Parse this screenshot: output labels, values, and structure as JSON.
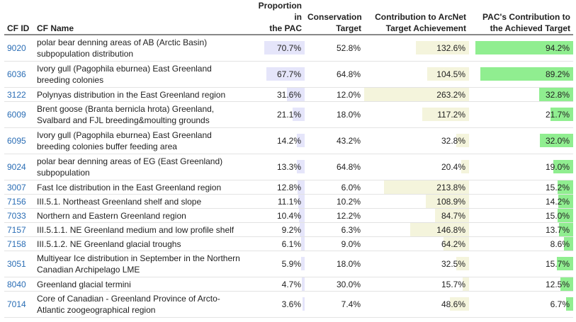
{
  "headers": {
    "cf_id": "CF ID",
    "cf_name": "CF Name",
    "proportion_l1": "Proportion in",
    "proportion_l2": "the PAC",
    "conservation_l1": "Conservation",
    "conservation_l2": "Target",
    "contribution_l1": "Contribution to ArcNet",
    "contribution_l2": "Target Achievement",
    "pac_l1": "PAC's Contribution to",
    "pac_l2": "the Achieved Target"
  },
  "rows": [
    {
      "id": "9020",
      "name": "polar bear denning areas of AB (Arctic Basin) subpopulation distribution",
      "proportion": "70.7%",
      "proportion_value": 70.7,
      "target": "52.8%",
      "contribution": "132.6%",
      "contribution_value": 132.6,
      "pac": "94.2%",
      "pac_value": 94.2
    },
    {
      "id": "6036",
      "name": "Ivory gull (Pagophila eburnea) East Greenland breeding colonies",
      "proportion": "67.7%",
      "proportion_value": 67.7,
      "target": "64.8%",
      "contribution": "104.5%",
      "contribution_value": 104.5,
      "pac": "89.2%",
      "pac_value": 89.2
    },
    {
      "id": "3122",
      "name": "Polynyas distribution in the East Greenland region",
      "proportion": "31.6%",
      "proportion_value": 31.6,
      "target": "12.0%",
      "contribution": "263.2%",
      "contribution_value": 263.2,
      "pac": "32.8%",
      "pac_value": 32.8
    },
    {
      "id": "6009",
      "name": "Brent goose (Branta bernicla hrota) Greenland, Svalbard and FJL breeding&moulting grounds",
      "proportion": "21.1%",
      "proportion_value": 21.1,
      "target": "18.0%",
      "contribution": "117.2%",
      "contribution_value": 117.2,
      "pac": "21.7%",
      "pac_value": 21.7
    },
    {
      "id": "6095",
      "name": "Ivory gull (Pagophila eburnea) East Greenland breeding colonies buffer feeding area",
      "proportion": "14.2%",
      "proportion_value": 14.2,
      "target": "43.2%",
      "contribution": "32.8%",
      "contribution_value": 32.8,
      "pac": "32.0%",
      "pac_value": 32.0
    },
    {
      "id": "9024",
      "name": "polar bear denning areas of EG (East Greenland) subpopulation",
      "proportion": "13.3%",
      "proportion_value": 13.3,
      "target": "64.8%",
      "contribution": "20.4%",
      "contribution_value": 20.4,
      "pac": "19.0%",
      "pac_value": 19.0
    },
    {
      "id": "3007",
      "name": "Fast Ice distribution in the East Greenland region",
      "proportion": "12.8%",
      "proportion_value": 12.8,
      "target": "6.0%",
      "contribution": "213.8%",
      "contribution_value": 213.8,
      "pac": "15.2%",
      "pac_value": 15.2
    },
    {
      "id": "7156",
      "name": "III.5.1. Northeast Greenland shelf and slope",
      "proportion": "11.1%",
      "proportion_value": 11.1,
      "target": "10.2%",
      "contribution": "108.9%",
      "contribution_value": 108.9,
      "pac": "14.2%",
      "pac_value": 14.2
    },
    {
      "id": "7033",
      "name": "Northern and Eastern Greenland region",
      "proportion": "10.4%",
      "proportion_value": 10.4,
      "target": "12.2%",
      "contribution": "84.7%",
      "contribution_value": 84.7,
      "pac": "15.0%",
      "pac_value": 15.0
    },
    {
      "id": "7157",
      "name": "III.5.1.1. NE Greenland medium and low profile shelf",
      "proportion": "9.2%",
      "proportion_value": 9.2,
      "target": "6.3%",
      "contribution": "146.8%",
      "contribution_value": 146.8,
      "pac": "13.7%",
      "pac_value": 13.7
    },
    {
      "id": "7158",
      "name": "III.5.1.2. NE Greenland glacial troughs",
      "proportion": "6.1%",
      "proportion_value": 6.1,
      "target": "9.0%",
      "contribution": "64.2%",
      "contribution_value": 64.2,
      "pac": "8.6%",
      "pac_value": 8.6
    },
    {
      "id": "3051",
      "name": "Multiyear Ice distribution in September in the Northern Canadian Archipelago LME",
      "proportion": "5.9%",
      "proportion_value": 5.9,
      "target": "18.0%",
      "contribution": "32.5%",
      "contribution_value": 32.5,
      "pac": "15.7%",
      "pac_value": 15.7
    },
    {
      "id": "8040",
      "name": "Greenland glacial termini",
      "proportion": "4.7%",
      "proportion_value": 4.7,
      "target": "30.0%",
      "contribution": "15.7%",
      "contribution_value": 15.7,
      "pac": "12.5%",
      "pac_value": 12.5
    },
    {
      "id": "7014",
      "name": "Core of Canadian - Greenland Province of Arcto-Atlantic zoogeographical region",
      "proportion": "3.6%",
      "proportion_value": 3.6,
      "target": "7.4%",
      "contribution": "48.6%",
      "contribution_value": 48.6,
      "pac": "6.7%",
      "pac_value": 6.7
    }
  ],
  "scales": {
    "proportion_max": 100,
    "contribution_max": 263.2,
    "pac_max": 100
  },
  "colors": {
    "proportion_bar": "#e5e5fa",
    "contribution_bar": "#f4f4dc",
    "pac_bar": "#90ee90",
    "link": "#2a6db5"
  }
}
